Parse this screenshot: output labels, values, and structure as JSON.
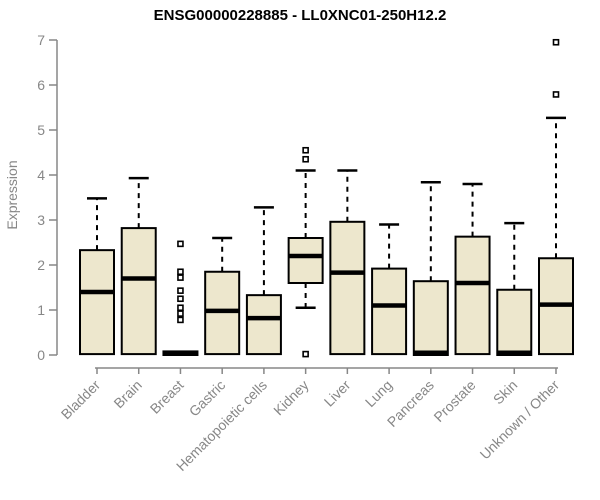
{
  "title": "ENSG00000228885 - LL0XNC01-250H12.2",
  "chart_data": {
    "type": "boxplot",
    "title": "ENSG00000228885 - LL0XNC01-250H12.2",
    "xlabel": "",
    "ylabel": "Expression",
    "ylim": [
      0,
      7
    ],
    "yticks": [
      0,
      1,
      2,
      3,
      4,
      5,
      6,
      7
    ],
    "grid": false,
    "legend": "none",
    "colors": {
      "box_fill": "#EDE7CD",
      "box_border": "#000000",
      "median": "#000000",
      "whisker": "#000000",
      "axis": "#878787",
      "tick_label": "#878787",
      "title": "#000000",
      "background": "#ffffff"
    },
    "categories": [
      "Bladder",
      "Brain",
      "Breast",
      "Gastric",
      "Hematopoietic cells",
      "Kidney",
      "Liver",
      "Lung",
      "Pancreas",
      "Prostate",
      "Skin",
      "Unknown / Other"
    ],
    "boxes": [
      {
        "name": "Bladder",
        "low": 0.02,
        "q1": 0.02,
        "median": 1.4,
        "q3": 2.33,
        "high": 3.48,
        "outliers": []
      },
      {
        "name": "Brain",
        "low": 0.02,
        "q1": 0.02,
        "median": 1.7,
        "q3": 2.82,
        "high": 3.93,
        "outliers": []
      },
      {
        "name": "Breast",
        "low": 0.0,
        "q1": 0.0,
        "median": 0.04,
        "q3": 0.08,
        "high": 0.08,
        "outliers": [
          2.47,
          1.85,
          1.72,
          1.43,
          1.25,
          1.05,
          0.92,
          0.78
        ]
      },
      {
        "name": "Gastric",
        "low": 0.02,
        "q1": 0.02,
        "median": 0.98,
        "q3": 1.85,
        "high": 2.6,
        "outliers": []
      },
      {
        "name": "Hematopoietic cells",
        "low": 0.02,
        "q1": 0.02,
        "median": 0.82,
        "q3": 1.33,
        "high": 3.28,
        "outliers": []
      },
      {
        "name": "Kidney",
        "low": 1.05,
        "q1": 1.6,
        "median": 2.2,
        "q3": 2.6,
        "high": 4.1,
        "outliers": [
          4.55,
          4.35,
          0.02
        ]
      },
      {
        "name": "Liver",
        "low": 0.02,
        "q1": 0.02,
        "median": 1.83,
        "q3": 2.96,
        "high": 4.1,
        "outliers": []
      },
      {
        "name": "Lung",
        "low": 0.02,
        "q1": 0.02,
        "median": 1.1,
        "q3": 1.92,
        "high": 2.9,
        "outliers": []
      },
      {
        "name": "Pancreas",
        "low": 0.0,
        "q1": 0.0,
        "median": 0.05,
        "q3": 1.64,
        "high": 3.84,
        "outliers": []
      },
      {
        "name": "Prostate",
        "low": 0.02,
        "q1": 0.02,
        "median": 1.6,
        "q3": 2.63,
        "high": 3.8,
        "outliers": []
      },
      {
        "name": "Skin",
        "low": 0.0,
        "q1": 0.0,
        "median": 0.05,
        "q3": 1.45,
        "high": 2.93,
        "outliers": []
      },
      {
        "name": "Unknown / Other",
        "low": 0.02,
        "q1": 0.02,
        "median": 1.12,
        "q3": 2.15,
        "high": 5.27,
        "outliers": [
          6.95,
          5.79
        ]
      }
    ]
  }
}
